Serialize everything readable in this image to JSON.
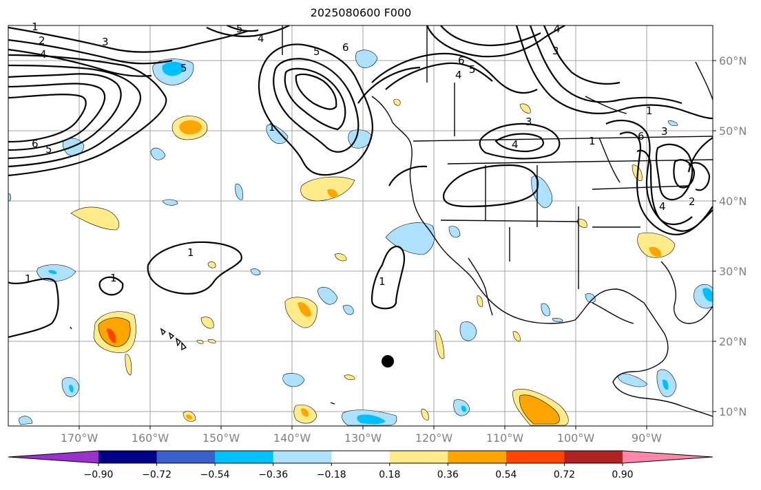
{
  "title": "2025080600 F000",
  "map": {
    "lat_labels": [
      "60°N",
      "50°N",
      "40°N",
      "30°N",
      "20°N",
      "10°N"
    ],
    "lon_labels": [
      "170°W",
      "160°W",
      "150°W",
      "140°W",
      "130°W",
      "120°W",
      "110°W",
      "100°W",
      "90°W"
    ],
    "contour_labels": [
      "1",
      "2",
      "3",
      "4",
      "5",
      "6",
      "5",
      "4",
      "5",
      "6",
      "6",
      "5",
      "4",
      "3",
      "4",
      "3",
      "1",
      "1",
      "4",
      "3",
      "6",
      "5",
      "1",
      "1",
      "1",
      "1",
      "1",
      "2",
      "4"
    ]
  },
  "colorbar": {
    "ticks": [
      "−0.90",
      "−0.72",
      "−0.54",
      "−0.36",
      "−0.18",
      "0.18",
      "0.36",
      "0.54",
      "0.72",
      "0.90"
    ],
    "colors": [
      "#9932cc",
      "#00008b",
      "#3a5fcd",
      "#00bfff",
      "#ade1fd",
      "#ffffff",
      "#ffeb8a",
      "#ffa500",
      "#ff4500",
      "#b22222",
      "#ff88aa"
    ]
  },
  "colors": {
    "contour": "#000000",
    "grid": "#a0a0a0",
    "fill_pos1": "#ffeb8a",
    "fill_pos2": "#ffa500",
    "fill_pos3": "#ff4500",
    "fill_neg1": "#ade1fd",
    "fill_neg2": "#00bfff"
  }
}
